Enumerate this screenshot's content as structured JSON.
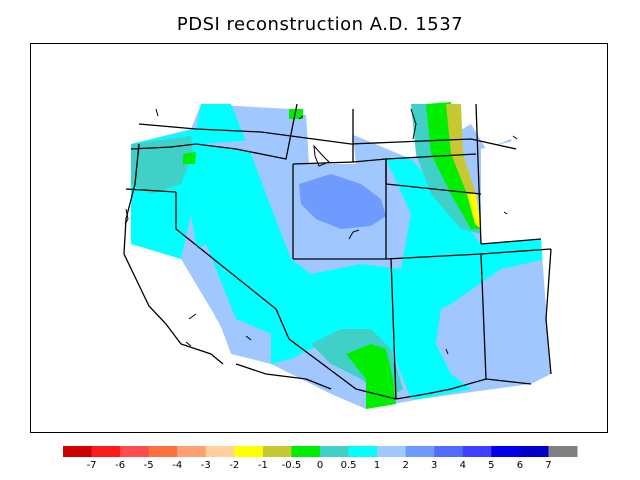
{
  "title": "PDSI reconstruction A.D. 1537",
  "legend": {
    "colors": [
      "#cc0000",
      "#ff1a1a",
      "#ff4d4d",
      "#ff7040",
      "#ffa070",
      "#ffd0a0",
      "#ffff00",
      "#c8c832",
      "#00ee00",
      "#40d0c8",
      "#00ffff",
      "#a0c8ff",
      "#6f9bff",
      "#4f6cff",
      "#3f3fff",
      "#0000ee",
      "#0000c8",
      "#808080"
    ],
    "labels": [
      "-7",
      "-6",
      "-5",
      "-4",
      "-3",
      "-2",
      "-1",
      "-0.5",
      "0",
      "0.5",
      "1",
      "2",
      "3",
      "4",
      "5",
      "6",
      "7"
    ]
  }
}
